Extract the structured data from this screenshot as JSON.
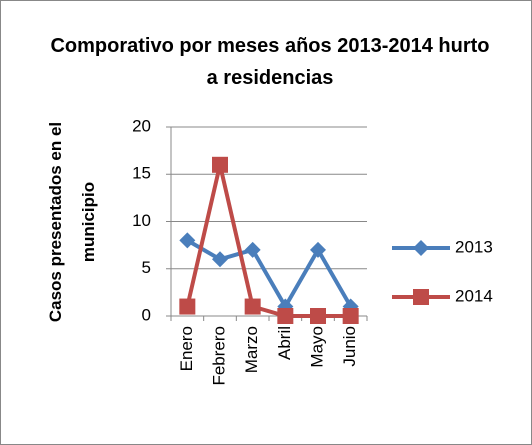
{
  "chart_data": {
    "type": "line",
    "title": "Comporativo por meses años 2013-2014 hurto a residencias",
    "y_label": "Casos presentados en el municipio",
    "categories": [
      "Enero",
      "Febrero",
      "Marzo",
      "Abril",
      "Mayo",
      "Junio"
    ],
    "series": [
      {
        "name": "2013",
        "color": "#4a7ebb",
        "marker": "diamond",
        "values": [
          8,
          6,
          7,
          1,
          7,
          1
        ]
      },
      {
        "name": "2014",
        "color": "#be4b48",
        "marker": "square",
        "values": [
          1,
          16,
          1,
          0,
          0,
          0
        ]
      }
    ],
    "ylim": [
      0,
      20
    ],
    "yticks": [
      0,
      5,
      10,
      15,
      20
    ],
    "grid": true,
    "legend": "right"
  }
}
